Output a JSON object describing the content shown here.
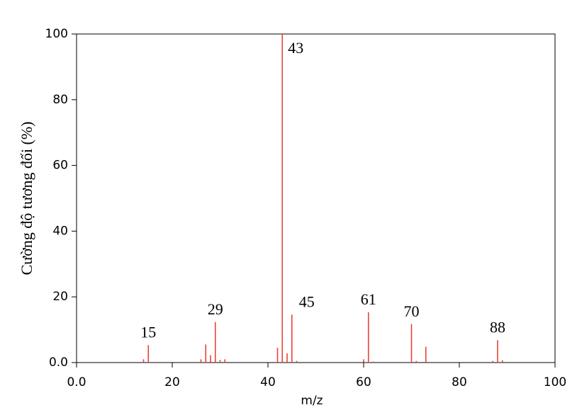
{
  "chart_data": {
    "type": "stem",
    "xlabel": "m/z",
    "ylabel": "Cường độ tương đối (%)",
    "x": [
      14,
      15,
      26,
      27,
      28,
      29,
      30,
      31,
      42,
      43,
      44,
      45,
      46,
      60,
      61,
      62,
      70,
      71,
      73,
      87,
      88,
      89
    ],
    "values": [
      1,
      5.3,
      1,
      5.5,
      2.2,
      12.3,
      0.8,
      1,
      4.5,
      100,
      2.8,
      14.6,
      0.5,
      1,
      15.3,
      0.3,
      11.7,
      0.5,
      4.8,
      0.5,
      6.8,
      0.7
    ],
    "color": "#e8413a",
    "peak_labels": [
      15,
      29,
      43,
      45,
      61,
      70,
      88
    ],
    "xlim": [
      0,
      100
    ],
    "xticks": [
      {
        "value": 0,
        "label": "0.0"
      },
      20,
      40,
      60,
      80,
      100
    ],
    "ylim": [
      0,
      100
    ],
    "yticks": [
      {
        "value": 0,
        "label": "0.0"
      },
      20,
      40,
      60,
      80,
      100
    ]
  }
}
